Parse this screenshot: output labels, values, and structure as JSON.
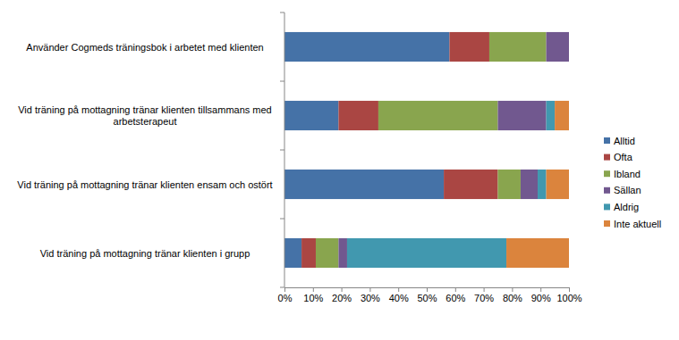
{
  "chart_data": {
    "type": "bar",
    "orientation": "horizontal",
    "stacked": true,
    "grid": false,
    "legend": "right",
    "categories": [
      "Använder Cogmeds träningsbok  i arbetet med klienten",
      "Vid träning på mottagning  tränar klienten tillsammans med arbetsterapeut",
      "Vid träning på mottagning  tränar klienten ensam och ostört",
      "Vid träning på mottagning  tränar klienten i grupp"
    ],
    "series": [
      {
        "name": "Alltid",
        "color": "#4572A7",
        "values": [
          58,
          19,
          56,
          6
        ]
      },
      {
        "name": "Ofta",
        "color": "#AA4643",
        "values": [
          14,
          14,
          19,
          5
        ]
      },
      {
        "name": "Ibland",
        "color": "#89A54E",
        "values": [
          20,
          42,
          8,
          8
        ]
      },
      {
        "name": "Sällan",
        "color": "#71588F",
        "values": [
          8,
          17,
          6,
          3
        ]
      },
      {
        "name": "Aldrig",
        "color": "#4198AF",
        "values": [
          0,
          3,
          3,
          56
        ]
      },
      {
        "name": "Inte aktuell",
        "color": "#DB843D",
        "values": [
          0,
          5,
          8,
          22
        ]
      }
    ],
    "xlim": [
      0,
      100
    ],
    "xticks": [
      {
        "value": 0,
        "label": "0%"
      },
      {
        "value": 10,
        "label": "10%"
      },
      {
        "value": 20,
        "label": "20%"
      },
      {
        "value": 30,
        "label": "30%"
      },
      {
        "value": 40,
        "label": "40%"
      },
      {
        "value": 50,
        "label": "50%"
      },
      {
        "value": 60,
        "label": "60%"
      },
      {
        "value": 70,
        "label": "70%"
      },
      {
        "value": 80,
        "label": "80%"
      },
      {
        "value": 90,
        "label": "90%"
      },
      {
        "value": 100,
        "label": "100%"
      }
    ]
  }
}
